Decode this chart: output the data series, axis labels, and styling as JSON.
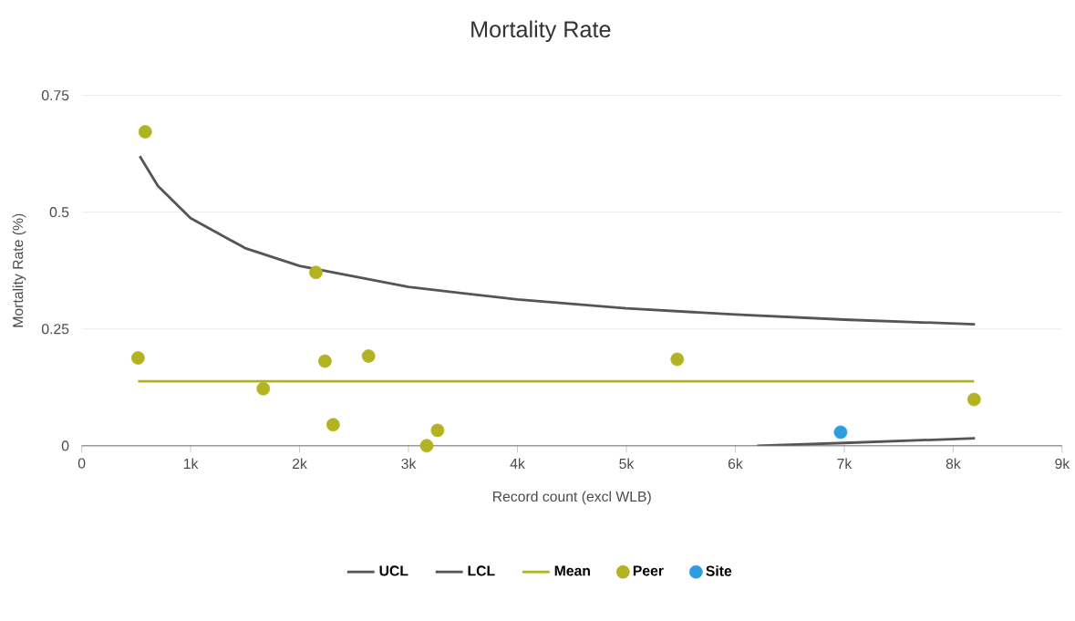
{
  "chart_data": {
    "type": "scatter",
    "title": "Mortality Rate",
    "xlabel": "Record count (excl WLB)",
    "ylabel": "Mortality Rate (%)",
    "xlim": [
      0,
      9000
    ],
    "ylim": [
      0,
      0.75
    ],
    "xticks": [
      0,
      {
        "value": 1000,
        "label": "1k"
      },
      {
        "value": 2000,
        "label": "2k"
      },
      {
        "value": 3000,
        "label": "3k"
      },
      {
        "value": 4000,
        "label": "4k"
      },
      {
        "value": 5000,
        "label": "5k"
      },
      {
        "value": 6000,
        "label": "6k"
      },
      {
        "value": 7000,
        "label": "7k"
      },
      {
        "value": 8000,
        "label": "8k"
      },
      {
        "value": 9000,
        "label": "9k"
      }
    ],
    "yticks": [
      0,
      0.25,
      0.5,
      0.75
    ],
    "grid": "y",
    "legend": "bottom",
    "series": [
      {
        "name": "UCL",
        "type": "line",
        "color": "#555555",
        "x": [
          533,
          700,
          1000,
          1500,
          2000,
          3000,
          4000,
          5000,
          6000,
          7000,
          8200
        ],
        "values": [
          0.62,
          0.556,
          0.487,
          0.423,
          0.385,
          0.34,
          0.313,
          0.294,
          0.281,
          0.27,
          0.26
        ]
      },
      {
        "name": "LCL",
        "type": "line",
        "color": "#555555",
        "x": [
          6200,
          7000,
          8200
        ],
        "values": [
          0,
          0.006,
          0.016
        ]
      },
      {
        "name": "Mean",
        "type": "line",
        "color": "#b2b223",
        "x": [
          517,
          8192
        ],
        "values": [
          0.138,
          0.138
        ]
      },
      {
        "name": "Peer",
        "marker": "circle",
        "color": "#b2b223",
        "x": [
          583,
          517,
          2150,
          1667,
          2233,
          2633,
          2308,
          3167,
          3267,
          5467,
          8192
        ],
        "values": [
          0.672,
          0.188,
          0.371,
          0.122,
          0.181,
          0.192,
          0.045,
          0.0,
          0.033,
          0.185,
          0.099
        ]
      },
      {
        "name": "Site",
        "marker": "circle",
        "color": "#2e9de0",
        "x": [
          6967
        ],
        "values": [
          0.029
        ]
      }
    ]
  }
}
